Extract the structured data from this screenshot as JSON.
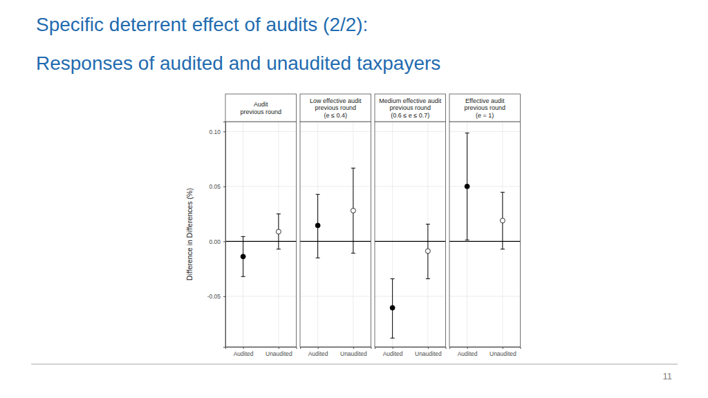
{
  "slide": {
    "title": [
      "Specific deterrent effect of audits (2/2):",
      "Responses of audited and unaudited taxpayers"
    ],
    "page_number": "11"
  },
  "chart_data": [
    {
      "type": "scatter",
      "title": [
        "Audit",
        "previous round"
      ],
      "y_label": "Difference in Differences (%)",
      "categories": [
        "Audited",
        "Unaudited"
      ],
      "values": [
        -0.0138,
        0.0088
      ],
      "lower": [
        -0.032,
        -0.007
      ],
      "upper": [
        0.0044,
        0.025
      ],
      "colors": [
        "#000000",
        "#ffffff"
      ],
      "reference_line": 0,
      "ylim": [
        -0.096,
        0.109
      ],
      "yticks": [
        {
          "value": -0.05,
          "label": "-0.05"
        },
        {
          "value": 0,
          "label": "0.00"
        },
        {
          "value": 0.05,
          "label": "0.05"
        },
        {
          "value": 0.1,
          "label": "0.10"
        }
      ],
      "grid": true
    },
    {
      "type": "scatter",
      "title": [
        "Low effective audit",
        "previous round",
        "(e ≤ 0.4)"
      ],
      "categories": [
        "Audited",
        "Unaudited"
      ],
      "values": [
        0.0145,
        0.028
      ],
      "lower": [
        -0.015,
        -0.0107
      ],
      "upper": [
        0.0428,
        0.0667
      ],
      "colors": [
        "#000000",
        "#ffffff"
      ],
      "reference_line": 0,
      "ylim": [
        -0.096,
        0.109
      ],
      "yticks": [
        -0.05,
        0,
        0.05,
        0.1
      ],
      "grid": true,
      "tick_labels": "x"
    },
    {
      "type": "scatter",
      "title": [
        "Medium effective audit",
        "previous round",
        "(0.6 ≤ e ≤ 0.7)"
      ],
      "categories": [
        "Audited",
        "Unaudited"
      ],
      "values": [
        -0.0604,
        -0.0088
      ],
      "lower": [
        -0.088,
        -0.034
      ],
      "upper": [
        -0.034,
        0.0157
      ],
      "colors": [
        "#000000",
        "#ffffff"
      ],
      "reference_line": 0,
      "ylim": [
        -0.096,
        0.109
      ],
      "yticks": [
        -0.05,
        0,
        0.05,
        0.1
      ],
      "grid": true,
      "tick_labels": "x"
    },
    {
      "type": "scatter",
      "title": [
        "Effective audit",
        "previous round",
        "(e = 1)"
      ],
      "categories": [
        "Audited",
        "Unaudited"
      ],
      "values": [
        0.05,
        0.0189
      ],
      "lower": [
        0.0013,
        -0.007
      ],
      "upper": [
        0.0987,
        0.0447
      ],
      "colors": [
        "#000000",
        "#ffffff"
      ],
      "reference_line": 0,
      "ylim": [
        -0.096,
        0.109
      ],
      "yticks": [
        -0.05,
        0,
        0.05,
        0.1
      ],
      "grid": true,
      "tick_labels": "x"
    }
  ]
}
